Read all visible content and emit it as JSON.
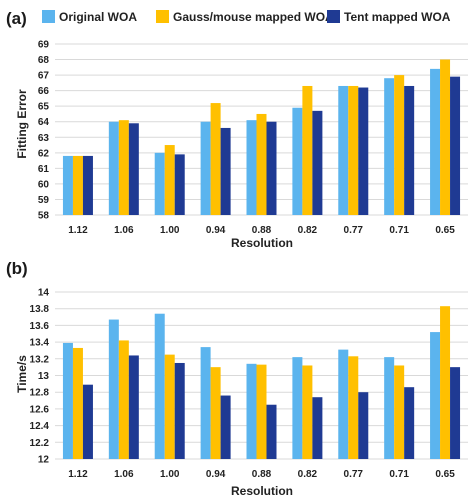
{
  "legend": [
    {
      "label": "Original WOA",
      "color": "#5BB4EE"
    },
    {
      "label": "Gauss/mouse mapped WOA",
      "color": "#FFC000"
    },
    {
      "label": "Tent mapped WOA",
      "color": "#1F3A93"
    }
  ],
  "chart_data": [
    {
      "type": "bar",
      "panel": "(a)",
      "categories": [
        "1.12",
        "1.06",
        "1.00",
        "0.94",
        "0.88",
        "0.82",
        "0.77",
        "0.71",
        "0.65"
      ],
      "series": [
        {
          "name": "Original WOA",
          "values": [
            61.8,
            64.0,
            62.0,
            64.0,
            64.1,
            64.9,
            66.3,
            66.8,
            67.4
          ]
        },
        {
          "name": "Gauss/mouse mapped WOA",
          "values": [
            61.8,
            64.1,
            62.5,
            65.2,
            64.5,
            66.3,
            66.3,
            67.0,
            68.0
          ]
        },
        {
          "name": "Tent mapped WOA",
          "values": [
            61.8,
            63.9,
            61.9,
            63.6,
            64.0,
            64.7,
            66.2,
            66.3,
            66.9
          ]
        }
      ],
      "xlabel": "Resolution",
      "ylabel": "Fitting Error",
      "ylim": [
        58,
        69
      ],
      "yticks": [
        "58",
        "59",
        "60",
        "61",
        "62",
        "63",
        "64",
        "65",
        "66",
        "67",
        "68",
        "69"
      ],
      "grid": true,
      "legend_position": "top"
    },
    {
      "type": "bar",
      "panel": "(b)",
      "categories": [
        "1.12",
        "1.06",
        "1.00",
        "0.94",
        "0.88",
        "0.82",
        "0.77",
        "0.71",
        "0.65"
      ],
      "series": [
        {
          "name": "Original WOA",
          "values": [
            13.39,
            13.67,
            13.74,
            13.34,
            13.14,
            13.22,
            13.31,
            13.22,
            13.52
          ]
        },
        {
          "name": "Gauss/mouse mapped WOA",
          "values": [
            13.33,
            13.42,
            13.25,
            13.1,
            13.13,
            13.12,
            13.23,
            13.12,
            13.83
          ]
        },
        {
          "name": "Tent mapped WOA",
          "values": [
            12.89,
            13.24,
            13.15,
            12.76,
            12.65,
            12.74,
            12.8,
            12.86,
            13.1
          ]
        }
      ],
      "xlabel": "Resolution",
      "ylabel": "Time/s",
      "ylim": [
        12,
        14
      ],
      "yticks": [
        "12",
        "12.2",
        "12.4",
        "12.6",
        "12.8",
        "13",
        "13.2",
        "13.4",
        "13.6",
        "13.8",
        "14"
      ],
      "grid": true
    }
  ]
}
